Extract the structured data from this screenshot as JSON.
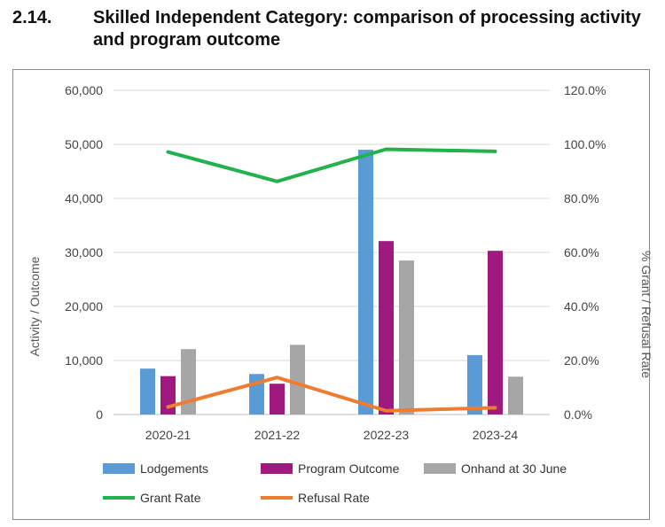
{
  "section": {
    "number": "2.14.",
    "title": "Skilled Independent Category: comparison of processing activity and program outcome"
  },
  "chart_data": {
    "type": "bar",
    "categories": [
      "2020-21",
      "2021-22",
      "2022-23",
      "2023-24"
    ],
    "series": [
      {
        "name": "Lodgements",
        "kind": "bar",
        "axis": "left",
        "color": "#5b9bd5",
        "values": [
          8500,
          7500,
          49000,
          11000
        ]
      },
      {
        "name": "Program Outcome",
        "kind": "bar",
        "axis": "left",
        "color": "#a0197e",
        "values": [
          7100,
          5700,
          32100,
          30300
        ]
      },
      {
        "name": "Onhand at 30 June",
        "kind": "bar",
        "axis": "left",
        "color": "#a6a6a6",
        "values": [
          12100,
          12900,
          28500,
          7000
        ]
      },
      {
        "name": "Grant Rate",
        "kind": "line",
        "axis": "right",
        "color": "#22b14c",
        "values": [
          97.2,
          86.3,
          98.2,
          97.4
        ]
      },
      {
        "name": "Refusal Rate",
        "kind": "line",
        "axis": "right",
        "color": "#ed7d31",
        "values": [
          2.8,
          13.7,
          1.4,
          2.5
        ]
      }
    ],
    "ylabel": "Activity / Outcome",
    "y2label": "% Grant / Refusal Rate",
    "ylim": [
      0,
      60000
    ],
    "y2lim": [
      0,
      120
    ],
    "yticks": [
      "0",
      "10,000",
      "20,000",
      "30,000",
      "40,000",
      "50,000",
      "60,000"
    ],
    "y2ticks": [
      "0.0%",
      "20.0%",
      "40.0%",
      "60.0%",
      "80.0%",
      "100.0%",
      "120.0%"
    ],
    "grid": true,
    "legend": "bottom"
  }
}
